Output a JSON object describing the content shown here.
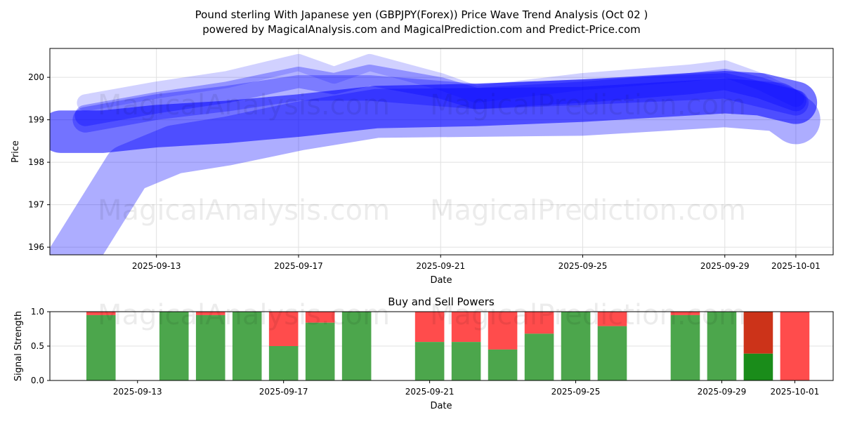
{
  "title_line1": "Pound sterling With Japanese yen (GBPJPY(Forex)) Price Wave Trend Analysis (Oct 02 )",
  "title_line2": "powered by MagicalAnalysis.com and MagicalPrediction.com and Predict-Price.com",
  "watermarks": [
    "MagicalAnalysis.com",
    "MagicalPrediction.com"
  ],
  "chart_data": [
    {
      "type": "area",
      "title": "",
      "xlabel": "Date",
      "ylabel": "Price",
      "x_origin_date": "2025-09-10",
      "xlim_days": [
        0,
        22.05
      ],
      "ylim": [
        195.82,
        200.68
      ],
      "yticks": [
        196,
        197,
        198,
        199,
        200
      ],
      "xticks": [
        {
          "day": 3,
          "label": "2025-09-13"
        },
        {
          "day": 7,
          "label": "2025-09-17"
        },
        {
          "day": 11,
          "label": "2025-09-21"
        },
        {
          "day": 15,
          "label": "2025-09-25"
        },
        {
          "day": 19,
          "label": "2025-09-29"
        },
        {
          "day": 21,
          "label": "2025-10-01"
        }
      ],
      "grid": true,
      "color": "#0000ff",
      "bands": [
        {
          "name": "wave-tail",
          "opacity": 0.32,
          "width": 1.15,
          "days": [
            0.3,
            2.2,
            3.5,
            5,
            7,
            9.2,
            15,
            19,
            20.5,
            21
          ],
          "center": [
            195.3,
            197.85,
            198.3,
            198.5,
            198.85,
            199.15,
            199.2,
            199.4,
            199.3,
            199.0
          ]
        },
        {
          "name": "wave-main",
          "opacity": 0.55,
          "width": 1.0,
          "days": [
            0.3,
            1.5,
            3,
            5,
            7,
            9.2,
            12,
            15,
            19,
            20,
            21
          ],
          "center": [
            198.72,
            198.72,
            198.85,
            198.95,
            199.1,
            199.3,
            199.35,
            199.45,
            199.65,
            199.6,
            199.4
          ]
        },
        {
          "name": "wave-upper-1",
          "opacity": 0.18,
          "width": 0.4,
          "days": [
            1,
            3,
            5,
            7,
            8,
            9,
            11,
            12,
            15,
            18,
            19,
            20,
            21
          ],
          "center": [
            199.4,
            199.7,
            199.95,
            200.35,
            200.05,
            200.35,
            199.9,
            199.6,
            199.9,
            200.1,
            200.2,
            199.9,
            199.5
          ]
        },
        {
          "name": "wave-upper-2",
          "opacity": 0.3,
          "width": 0.5,
          "days": [
            1,
            3,
            5,
            7,
            8,
            9,
            11,
            12,
            15,
            18,
            19,
            20,
            21
          ],
          "center": [
            199.1,
            199.4,
            199.65,
            200.0,
            199.85,
            200.05,
            199.75,
            199.5,
            199.65,
            199.85,
            199.95,
            199.75,
            199.45
          ]
        },
        {
          "name": "wave-mid",
          "opacity": 0.3,
          "width": 0.6,
          "days": [
            1,
            3,
            5,
            7,
            9,
            12,
            15,
            19,
            21
          ],
          "center": [
            199.0,
            199.3,
            199.5,
            199.75,
            199.75,
            199.55,
            199.65,
            199.8,
            199.4
          ]
        }
      ]
    },
    {
      "type": "bar",
      "title": "Buy and Sell Powers",
      "xlabel": "Date",
      "ylabel": "Signal Strength",
      "ylim": [
        0,
        1
      ],
      "yticks": [
        "0.0",
        "0.5",
        "1.0"
      ],
      "xlim_days": [
        0.6,
        22.05
      ],
      "xticks": [
        {
          "day": 3,
          "label": "2025-09-13"
        },
        {
          "day": 7,
          "label": "2025-09-17"
        },
        {
          "day": 11,
          "label": "2025-09-21"
        },
        {
          "day": 15,
          "label": "2025-09-25"
        },
        {
          "day": 19,
          "label": "2025-09-29"
        },
        {
          "day": 21,
          "label": "2025-10-01"
        }
      ],
      "buy_color": "#4ca64c",
      "sell_color": "#ff4c4c",
      "highlight_buy_color": "#1a8c1a",
      "highlight_sell_color": "#cc3319",
      "bars": [
        {
          "date": "2025-09-12",
          "day": 2,
          "buy": 0.95
        },
        {
          "date": "2025-09-14",
          "day": 4,
          "buy": 1.0
        },
        {
          "date": "2025-09-15",
          "day": 5,
          "buy": 0.95
        },
        {
          "date": "2025-09-16",
          "day": 6,
          "buy": 1.0
        },
        {
          "date": "2025-09-17",
          "day": 7,
          "buy": 0.5
        },
        {
          "date": "2025-09-18",
          "day": 8,
          "buy": 0.84
        },
        {
          "date": "2025-09-19",
          "day": 9,
          "buy": 1.0
        },
        {
          "date": "2025-09-21",
          "day": 11,
          "buy": 0.56
        },
        {
          "date": "2025-09-22",
          "day": 12,
          "buy": 0.56
        },
        {
          "date": "2025-09-23",
          "day": 13,
          "buy": 0.45
        },
        {
          "date": "2025-09-24",
          "day": 14,
          "buy": 0.68
        },
        {
          "date": "2025-09-25",
          "day": 15,
          "buy": 1.0
        },
        {
          "date": "2025-09-26",
          "day": 16,
          "buy": 0.79
        },
        {
          "date": "2025-09-28",
          "day": 18,
          "buy": 0.95
        },
        {
          "date": "2025-09-29",
          "day": 19,
          "buy": 1.0
        },
        {
          "date": "2025-09-30",
          "day": 20,
          "buy": 0.39,
          "highlight": true
        },
        {
          "date": "2025-10-01",
          "day": 21,
          "buy": 0.0
        }
      ]
    }
  ]
}
